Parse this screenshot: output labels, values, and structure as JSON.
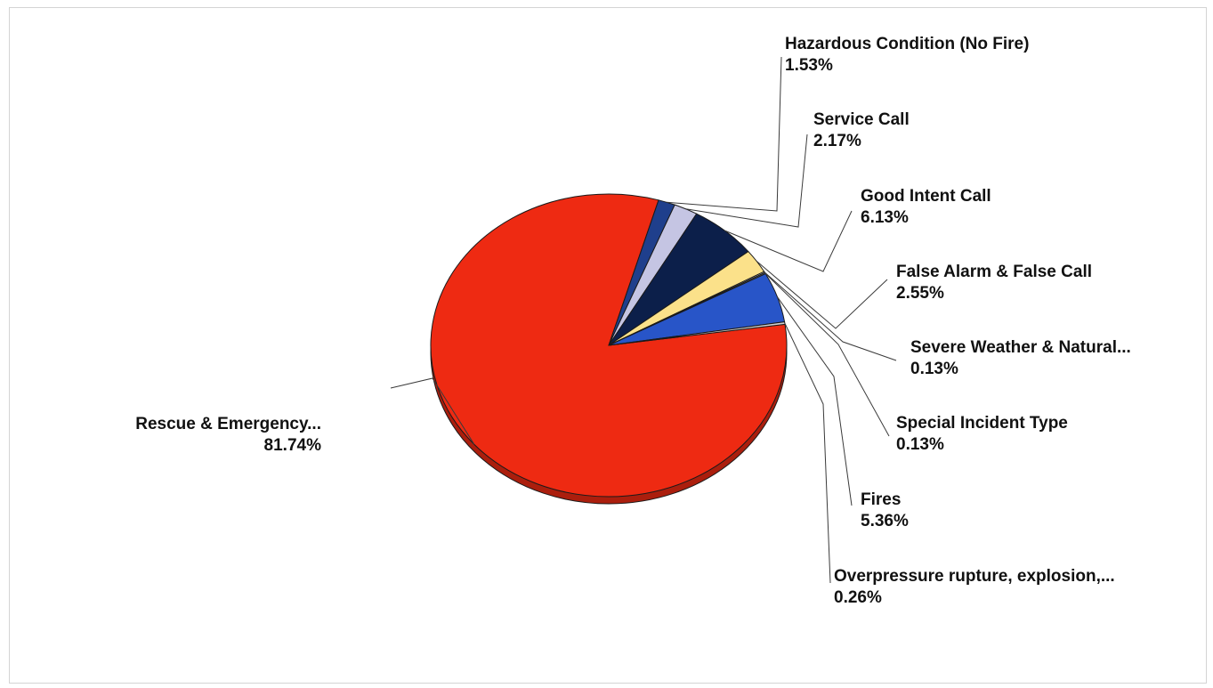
{
  "chart_data": {
    "type": "pie",
    "title": "",
    "slices": [
      {
        "label": "Rescue & Emergency...",
        "value": 81.74,
        "value_label": "81.74%",
        "color": "#ee2a12"
      },
      {
        "label": "Hazardous Condition (No Fire)",
        "value": 1.53,
        "value_label": "1.53%",
        "color": "#1f3f8c"
      },
      {
        "label": "Service Call",
        "value": 2.17,
        "value_label": "2.17%",
        "color": "#c5c5e3"
      },
      {
        "label": "Good Intent Call",
        "value": 6.13,
        "value_label": "6.13%",
        "color": "#0c1f4a"
      },
      {
        "label": "False Alarm & False Call",
        "value": 2.55,
        "value_label": "2.55%",
        "color": "#fbe18a"
      },
      {
        "label": "Severe Weather & Natural...",
        "value": 0.13,
        "value_label": "0.13%",
        "color": "#f3f3f3"
      },
      {
        "label": "Special Incident Type",
        "value": 0.13,
        "value_label": "0.13%",
        "color": "#7a7a7a"
      },
      {
        "label": "Fires",
        "value": 5.36,
        "value_label": "5.36%",
        "color": "#2855c8"
      },
      {
        "label": "Overpressure rupture, explosion,...",
        "value": 0.26,
        "value_label": "0.26%",
        "color": "#d0d0d0"
      }
    ],
    "legend": "none",
    "style": "3d-tilted"
  }
}
